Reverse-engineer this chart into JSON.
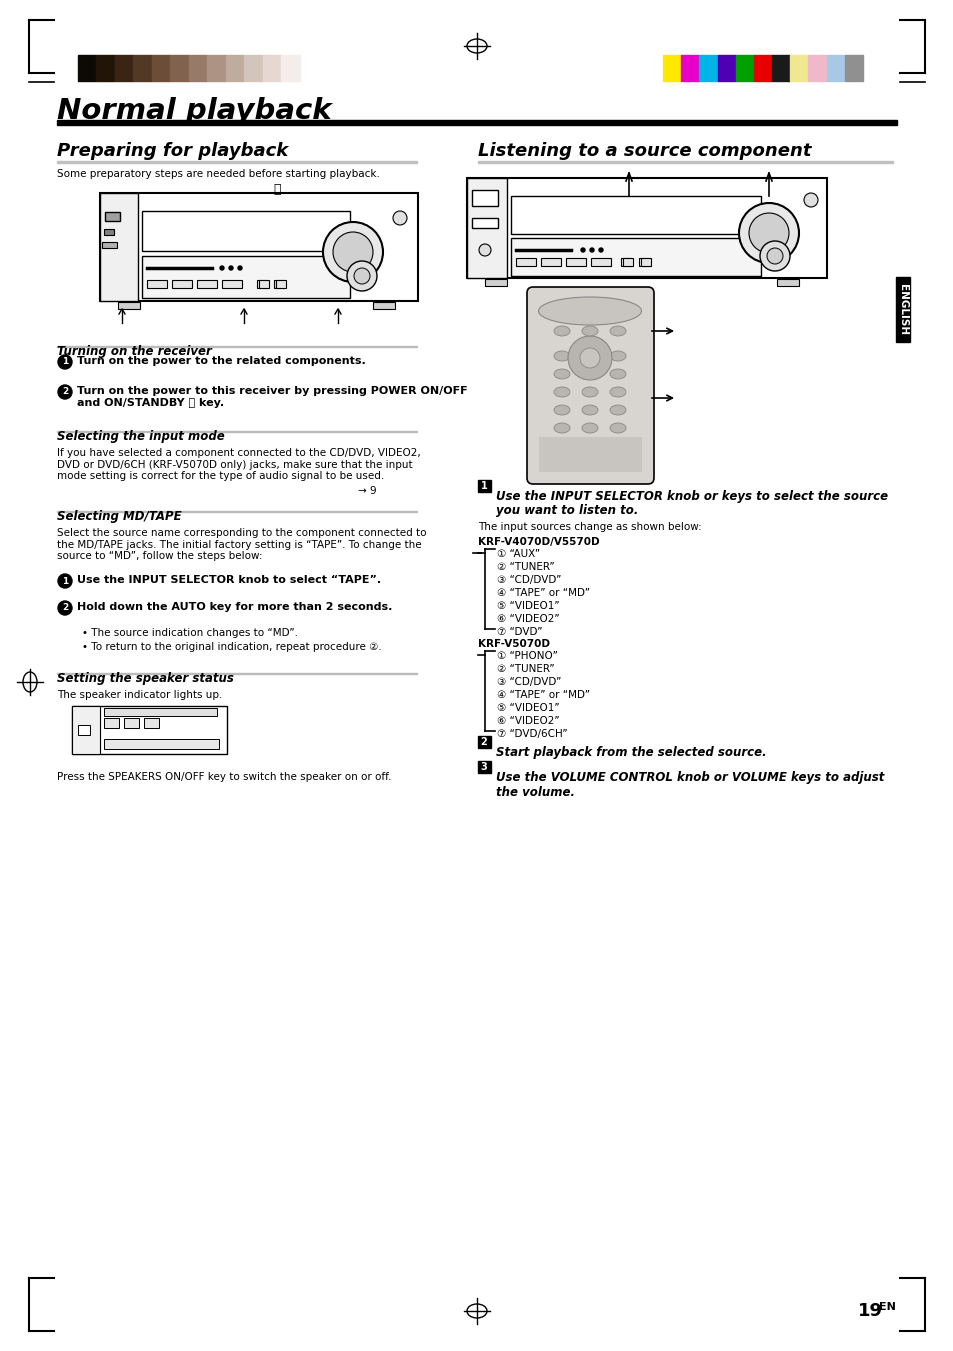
{
  "page_bg": "#ffffff",
  "header_bar_colors_left": [
    "#0d0905",
    "#221508",
    "#3a2515",
    "#533826",
    "#6b4d38",
    "#81624e",
    "#977a68",
    "#ac9384",
    "#c0ac9f",
    "#d4c5bc",
    "#e5d8d2",
    "#f4ede9"
  ],
  "header_bar_colors_right": [
    "#ffe800",
    "#e800c8",
    "#00b4e8",
    "#5000b4",
    "#00a000",
    "#e80000",
    "#1a1a1a",
    "#f0e890",
    "#f0b8c8",
    "#a8c8e8",
    "#909090"
  ],
  "main_title": "Normal playback",
  "section1_title": "Preparing for playback",
  "section2_title": "Listening to a source component",
  "section1_intro": "Some preparatory steps are needed before starting playback.",
  "sub1_title": "Turning on the receiver",
  "sub1_step1": "Turn on the power to the related components.",
  "sub2_title": "Selecting the input mode",
  "sub3_title": "Selecting MD/TAPE",
  "sub4_title": "Setting the speaker status",
  "right2_label": "KRF-V4070D/V5570D",
  "right2_items": [
    "“AUX”",
    "“TUNER”",
    "“CD/DVD”",
    "“TAPE” or “MD”",
    "“VIDEO1”",
    "“VIDEO2”",
    "“DVD”"
  ],
  "right3_label": "KRF-V5070D",
  "right3_items": [
    "“PHONO”",
    "“TUNER”",
    "“CD/DVD”",
    "“TAPE” or “MD”",
    "“VIDEO1”",
    "“VIDEO2”",
    "“DVD/6CH”"
  ],
  "page_number": "19",
  "side_label": "ENGLISH"
}
